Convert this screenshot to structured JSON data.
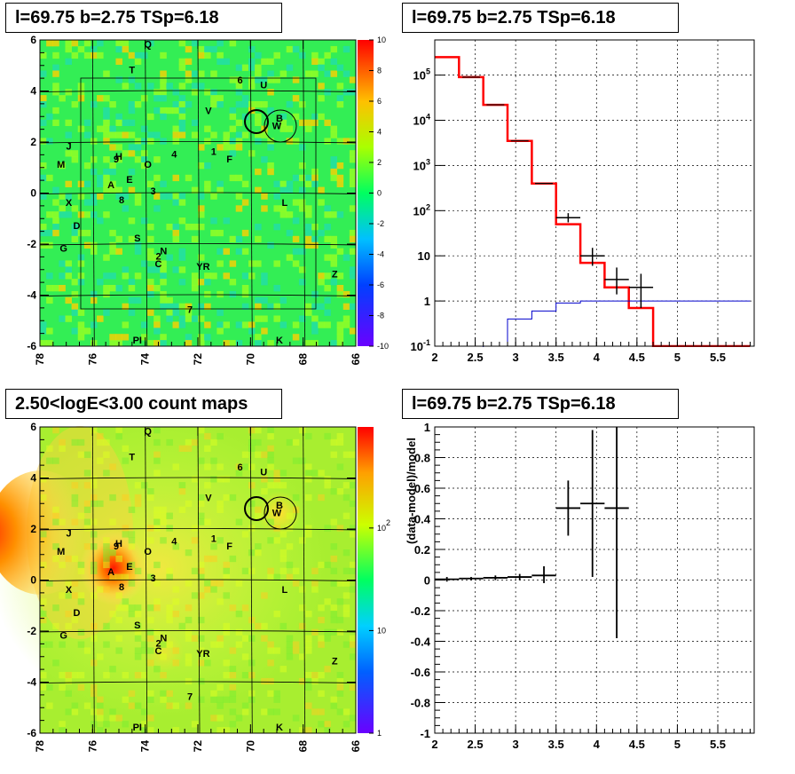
{
  "titles": {
    "top_left": "l=69.75 b=2.75 TSp=6.18",
    "top_right": "l=69.75 b=2.75 TSp=6.18",
    "bottom_left": "2.50<logE<3.00 count maps",
    "bottom_right": "l=69.75 b=2.75 TSp=6.18"
  },
  "colors": {
    "frame": "#000000",
    "model_line": "#ff0000",
    "background_line": "#0000cc",
    "data_points": "#000000"
  },
  "chart_data": [
    {
      "id": "ts-map",
      "type": "heatmap",
      "title": "l=69.75 b=2.75 TSp=6.18",
      "x_ticks": [
        "78",
        "76",
        "74",
        "72",
        "70",
        "68",
        "66"
      ],
      "y_ticks": [
        "6",
        "4",
        "2",
        "0",
        "-2",
        "-4",
        "-6"
      ],
      "xlim": [
        78,
        66
      ],
      "ylim": [
        -6,
        6
      ],
      "colorbar": {
        "ticks": [
          "10",
          "8",
          "6",
          "4",
          "2",
          "0",
          "-2",
          "-4",
          "-6",
          "-8",
          "-10"
        ],
        "range": [
          -10,
          10
        ]
      },
      "source_labels": [
        {
          "t": "Q",
          "x": 73.9,
          "y": 5.7
        },
        {
          "t": "T",
          "x": 74.5,
          "y": 4.7
        },
        {
          "t": "6",
          "x": 70.4,
          "y": 4.3
        },
        {
          "t": "U",
          "x": 69.5,
          "y": 4.1
        },
        {
          "t": "V",
          "x": 71.6,
          "y": 3.1
        },
        {
          "t": "B",
          "x": 68.9,
          "y": 2.8
        },
        {
          "t": "W",
          "x": 69.0,
          "y": 2.5
        },
        {
          "t": "J",
          "x": 76.9,
          "y": 1.7
        },
        {
          "t": "M",
          "x": 77.2,
          "y": 1.0
        },
        {
          "t": "H",
          "x": 75.0,
          "y": 1.3
        },
        {
          "t": "9",
          "x": 75.1,
          "y": 1.2
        },
        {
          "t": "O",
          "x": 73.9,
          "y": 1.0
        },
        {
          "t": "4",
          "x": 72.9,
          "y": 1.4
        },
        {
          "t": "1",
          "x": 71.4,
          "y": 1.5
        },
        {
          "t": "F",
          "x": 70.8,
          "y": 1.2
        },
        {
          "t": "E",
          "x": 74.6,
          "y": 0.4
        },
        {
          "t": "A",
          "x": 75.3,
          "y": 0.2
        },
        {
          "t": "3",
          "x": 73.7,
          "y": -0.05
        },
        {
          "t": "8",
          "x": 74.9,
          "y": -0.4
        },
        {
          "t": "X",
          "x": 76.9,
          "y": -0.5
        },
        {
          "t": "L",
          "x": 68.7,
          "y": -0.5
        },
        {
          "t": "D",
          "x": 76.6,
          "y": -1.4
        },
        {
          "t": "S",
          "x": 74.3,
          "y": -1.9
        },
        {
          "t": "G",
          "x": 77.1,
          "y": -2.3
        },
        {
          "t": "N",
          "x": 73.3,
          "y": -2.4
        },
        {
          "t": "2",
          "x": 73.5,
          "y": -2.6
        },
        {
          "t": "C",
          "x": 73.5,
          "y": -2.9
        },
        {
          "t": "YR",
          "x": 71.8,
          "y": -3.0
        },
        {
          "t": "Z",
          "x": 66.8,
          "y": -3.3
        },
        {
          "t": "7",
          "x": 72.3,
          "y": -4.7
        },
        {
          "t": "PI",
          "x": 74.3,
          "y": -5.9
        },
        {
          "t": "K",
          "x": 68.9,
          "y": -5.9
        }
      ]
    },
    {
      "id": "spectrum",
      "type": "line",
      "title": "l=69.75 b=2.75 TSp=6.18",
      "x_ticks": [
        "2",
        "2.5",
        "3",
        "3.5",
        "4",
        "4.5",
        "5",
        "5.5"
      ],
      "y_ticks": [
        "10^-1",
        "1",
        "10",
        "10^2",
        "10^3",
        "10^4",
        "10^5"
      ],
      "xlim": [
        2,
        5.95
      ],
      "ylim": [
        0.1,
        600000
      ],
      "log_y": true,
      "bin_edges": [
        2.0,
        2.3,
        2.6,
        2.9,
        3.2,
        3.5,
        3.8,
        4.1,
        4.4,
        4.7,
        5.0,
        5.3,
        5.6,
        5.9
      ],
      "series": [
        {
          "values": [
            250000,
            90000,
            22000,
            3500,
            400,
            50,
            7,
            2,
            0.7,
            0.1,
            0.1,
            0.1,
            0.1
          ]
        },
        {
          "values": [
            0.05,
            0.05,
            0.1,
            0.4,
            0.6,
            0.9,
            1,
            1,
            1,
            1,
            1,
            1,
            1
          ]
        }
      ],
      "points": [
        {
          "x": 2.45,
          "y": 90000
        },
        {
          "x": 2.75,
          "y": 22000
        },
        {
          "x": 3.05,
          "y": 3500
        },
        {
          "x": 3.35,
          "y": 400
        },
        {
          "x": 3.65,
          "y": 70,
          "dx": 0.15,
          "ylo": 55,
          "yhi": 88
        },
        {
          "x": 3.95,
          "y": 10,
          "dx": 0.15,
          "ylo": 6,
          "yhi": 15
        },
        {
          "x": 4.25,
          "y": 3,
          "dx": 0.15,
          "ylo": 1.4,
          "yhi": 5.5
        },
        {
          "x": 4.55,
          "y": 2,
          "dx": 0.15,
          "ylo": 0.7,
          "yhi": 4
        }
      ]
    },
    {
      "id": "count-map",
      "type": "heatmap",
      "title": "2.50<logE<3.00 count maps",
      "x_ticks": [
        "78",
        "76",
        "74",
        "72",
        "70",
        "68",
        "66"
      ],
      "y_ticks": [
        "6",
        "4",
        "2",
        "0",
        "-2",
        "-4",
        "-6"
      ],
      "xlim": [
        78,
        66
      ],
      "ylim": [
        -6,
        6
      ],
      "colorbar": {
        "ticks": [
          "10^2",
          "10",
          "1"
        ],
        "log": true
      },
      "source_labels": [
        {
          "t": "Q",
          "x": 73.9,
          "y": 5.7
        },
        {
          "t": "T",
          "x": 74.5,
          "y": 4.7
        },
        {
          "t": "6",
          "x": 70.4,
          "y": 4.3
        },
        {
          "t": "U",
          "x": 69.5,
          "y": 4.1
        },
        {
          "t": "V",
          "x": 71.6,
          "y": 3.1
        },
        {
          "t": "B",
          "x": 68.9,
          "y": 2.8
        },
        {
          "t": "W",
          "x": 69.0,
          "y": 2.5
        },
        {
          "t": "J",
          "x": 76.9,
          "y": 1.7
        },
        {
          "t": "M",
          "x": 77.2,
          "y": 1.0
        },
        {
          "t": "H",
          "x": 75.0,
          "y": 1.3
        },
        {
          "t": "9",
          "x": 75.1,
          "y": 1.2
        },
        {
          "t": "O",
          "x": 73.9,
          "y": 1.0
        },
        {
          "t": "4",
          "x": 72.9,
          "y": 1.4
        },
        {
          "t": "1",
          "x": 71.4,
          "y": 1.5
        },
        {
          "t": "F",
          "x": 70.8,
          "y": 1.2
        },
        {
          "t": "E",
          "x": 74.6,
          "y": 0.4
        },
        {
          "t": "A",
          "x": 75.3,
          "y": 0.2
        },
        {
          "t": "3",
          "x": 73.7,
          "y": -0.05
        },
        {
          "t": "8",
          "x": 74.9,
          "y": -0.4
        },
        {
          "t": "X",
          "x": 76.9,
          "y": -0.5
        },
        {
          "t": "L",
          "x": 68.7,
          "y": -0.5
        },
        {
          "t": "D",
          "x": 76.6,
          "y": -1.4
        },
        {
          "t": "S",
          "x": 74.3,
          "y": -1.9
        },
        {
          "t": "G",
          "x": 77.1,
          "y": -2.3
        },
        {
          "t": "N",
          "x": 73.3,
          "y": -2.4
        },
        {
          "t": "2",
          "x": 73.5,
          "y": -2.6
        },
        {
          "t": "C",
          "x": 73.5,
          "y": -2.9
        },
        {
          "t": "YR",
          "x": 71.8,
          "y": -3.0
        },
        {
          "t": "Z",
          "x": 66.8,
          "y": -3.3
        },
        {
          "t": "7",
          "x": 72.3,
          "y": -4.7
        },
        {
          "t": "PI",
          "x": 74.3,
          "y": -5.9
        },
        {
          "t": "K",
          "x": 68.9,
          "y": -5.9
        }
      ]
    },
    {
      "id": "residuals",
      "type": "scatter",
      "title": "l=69.75 b=2.75 TSp=6.18",
      "ylabel": "(data-model)/model",
      "x_ticks": [
        "2",
        "2.5",
        "3",
        "3.5",
        "4",
        "4.5",
        "5",
        "5.5"
      ],
      "y_ticks": [
        "1",
        "0.8",
        "0.6",
        "0.4",
        "0.2",
        "0",
        "-0.2",
        "-0.4",
        "-0.6",
        "-0.8",
        "-1"
      ],
      "xlim": [
        2,
        5.95
      ],
      "ylim": [
        -1,
        1
      ],
      "points": [
        {
          "x": 2.15,
          "y": 0.005,
          "dx": 0.15,
          "ylo": -0.01,
          "yhi": 0.02
        },
        {
          "x": 2.45,
          "y": 0.01,
          "dx": 0.15,
          "ylo": 0.0,
          "yhi": 0.02
        },
        {
          "x": 2.75,
          "y": 0.015,
          "dx": 0.15,
          "ylo": 0.0,
          "yhi": 0.03
        },
        {
          "x": 3.05,
          "y": 0.02,
          "dx": 0.15,
          "ylo": 0.0,
          "yhi": 0.04
        },
        {
          "x": 3.35,
          "y": 0.03,
          "dx": 0.15,
          "ylo": -0.02,
          "yhi": 0.09
        },
        {
          "x": 3.65,
          "y": 0.47,
          "dx": 0.15,
          "ylo": 0.29,
          "yhi": 0.65
        },
        {
          "x": 3.95,
          "y": 0.5,
          "dx": 0.15,
          "ylo": 0.02,
          "yhi": 0.98
        },
        {
          "x": 4.25,
          "y": 0.47,
          "dx": 0.15,
          "ylo": -0.38,
          "yhi": 1.0
        }
      ]
    }
  ]
}
